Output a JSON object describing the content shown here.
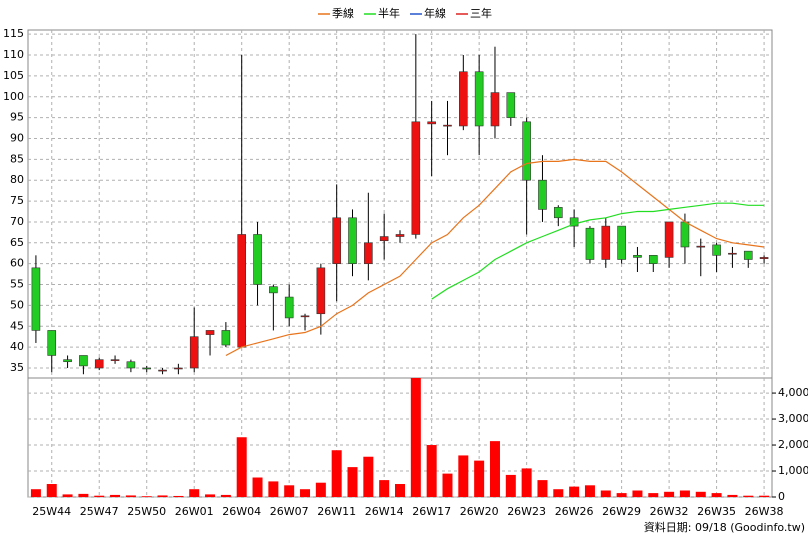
{
  "chart_data": {
    "type": "candlestick",
    "categories": [
      null,
      "25W44",
      null,
      null,
      "25W47",
      null,
      null,
      "25W50",
      null,
      null,
      "26W01",
      null,
      null,
      "26W04",
      null,
      null,
      "26W07",
      null,
      null,
      "26W11",
      null,
      null,
      "26W14",
      null,
      null,
      "26W17",
      null,
      null,
      "26W20",
      null,
      null,
      "26W23",
      null,
      null,
      "26W26",
      null,
      null,
      "26W29",
      null,
      null,
      "26W32",
      null,
      null,
      "26W35",
      null,
      null,
      "26W38"
    ],
    "open": [
      59,
      44,
      37,
      38,
      35,
      37,
      36.5,
      35,
      34.5,
      35,
      35,
      43,
      44,
      40,
      67,
      54.5,
      52,
      47.5,
      48,
      60,
      71,
      60,
      65.5,
      66.5,
      67,
      93.5,
      93,
      93,
      106,
      93,
      101,
      94,
      80,
      73.5,
      71,
      68.5,
      61,
      69,
      62,
      62,
      61.5,
      70,
      64,
      64.5,
      62.5,
      63,
      61.2
    ],
    "high": [
      62,
      44,
      38,
      38,
      37.5,
      38,
      37,
      35.5,
      35,
      36,
      49.5,
      44,
      46,
      110,
      70,
      55,
      55,
      48,
      60,
      79,
      73,
      77,
      72,
      68,
      115,
      99,
      99,
      110,
      110,
      112,
      101,
      95,
      86,
      74,
      73,
      69,
      71,
      69,
      64,
      62,
      70,
      72,
      66,
      65,
      64,
      63,
      62
    ],
    "low": [
      41,
      34,
      35,
      33.5,
      34.5,
      36,
      34,
      34,
      33.5,
      33.5,
      34,
      38,
      40,
      40,
      50,
      44,
      45,
      44,
      43,
      51,
      57,
      56,
      61,
      65,
      66,
      81,
      86,
      92,
      86,
      90,
      93,
      67,
      70,
      69,
      64,
      60,
      59,
      60,
      58,
      58,
      59,
      60,
      57,
      58,
      59,
      59,
      60
    ],
    "close": [
      44,
      38,
      36.5,
      35.5,
      37,
      37,
      35,
      34.8,
      34.5,
      35,
      42.5,
      44,
      40.5,
      67,
      55,
      53,
      47,
      47.5,
      59,
      71,
      60,
      65,
      66.5,
      67,
      94,
      94,
      93.2,
      106,
      93,
      101,
      95,
      80,
      73,
      71,
      69,
      61,
      69,
      61,
      61.5,
      60,
      70,
      64,
      64.2,
      62,
      62.5,
      61,
      61.5
    ],
    "up_color": "#ee1111",
    "down_color": "#22cc22",
    "ylim": [
      32.6,
      116
    ],
    "yticks": [
      35,
      40,
      45,
      50,
      55,
      60,
      65,
      70,
      75,
      80,
      85,
      90,
      95,
      100,
      105,
      110,
      115
    ],
    "grid": true,
    "series": [
      {
        "name": "季線",
        "color": "#e8741c",
        "values": [
          null,
          null,
          null,
          null,
          null,
          null,
          null,
          null,
          null,
          null,
          null,
          null,
          38,
          40,
          41,
          42,
          43,
          43.5,
          45,
          48,
          50,
          53,
          55,
          57,
          61,
          65,
          67,
          71,
          74,
          78,
          82,
          84,
          84.5,
          84.5,
          85,
          84.5,
          84.5,
          82,
          79,
          76,
          73,
          70,
          68,
          66,
          65,
          64.5,
          64
        ]
      },
      {
        "name": "半年",
        "color": "#22dd22",
        "values": [
          null,
          null,
          null,
          null,
          null,
          null,
          null,
          null,
          null,
          null,
          null,
          null,
          null,
          null,
          null,
          null,
          null,
          null,
          null,
          null,
          null,
          null,
          null,
          null,
          null,
          51.5,
          54,
          56,
          58,
          61,
          63,
          65,
          66.5,
          68,
          69.5,
          70.5,
          71,
          72,
          72.5,
          72.5,
          73,
          73.5,
          74,
          74.5,
          74.5,
          74,
          74
        ]
      },
      {
        "name": "年線",
        "color": "#2255cc",
        "values": [
          null,
          null,
          null,
          null,
          null,
          null,
          null,
          null,
          null,
          null,
          null,
          null,
          null,
          null,
          null,
          null,
          null,
          null,
          null,
          null,
          null,
          null,
          null,
          null,
          null,
          null,
          null,
          null,
          null,
          null,
          null,
          null,
          null,
          null,
          null,
          null,
          null,
          null,
          null,
          null,
          null,
          null,
          null,
          null,
          null,
          null,
          null
        ]
      },
      {
        "name": "三年",
        "color": "#dd2222",
        "values": [
          null,
          null,
          null,
          null,
          null,
          null,
          null,
          null,
          null,
          null,
          null,
          null,
          null,
          null,
          null,
          null,
          null,
          null,
          null,
          null,
          null,
          null,
          null,
          null,
          null,
          null,
          null,
          null,
          null,
          null,
          null,
          null,
          null,
          null,
          null,
          null,
          null,
          null,
          null,
          null,
          null,
          null,
          null,
          null,
          null,
          null,
          null
        ]
      }
    ],
    "volume": {
      "color": "#ff0000",
      "values": [
        300,
        500,
        100,
        120,
        50,
        80,
        60,
        30,
        60,
        40,
        300,
        100,
        80,
        2300,
        750,
        600,
        450,
        300,
        550,
        1800,
        1150,
        1550,
        650,
        500,
        4580,
        2000,
        900,
        1600,
        1400,
        2150,
        850,
        1100,
        650,
        300,
        400,
        450,
        250,
        150,
        250,
        150,
        200,
        250,
        200,
        150,
        80,
        50,
        50
      ],
      "ylim": [
        0,
        4580
      ],
      "yticks": [
        0,
        {
          "value": 1000,
          "label": "1,000"
        },
        {
          "value": 2000,
          "label": "2,000"
        },
        {
          "value": 3000,
          "label": "3,000"
        },
        {
          "value": 4000,
          "label": "4,000"
        }
      ]
    },
    "footer": "資料日期: 09/18 (Goodinfo.tw)"
  }
}
